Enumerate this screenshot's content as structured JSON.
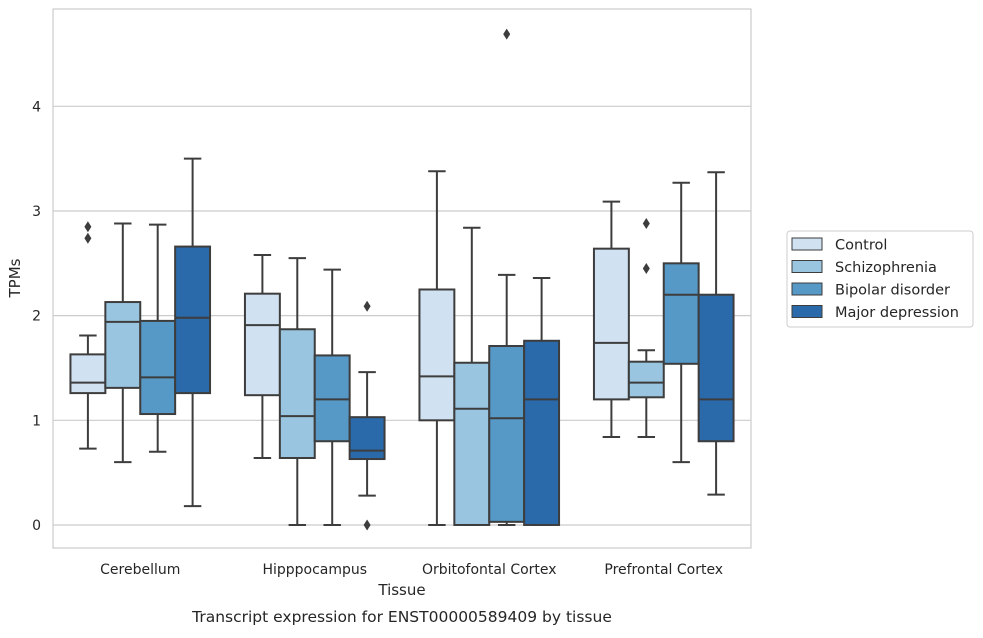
{
  "chart_data": {
    "type": "box",
    "title": "",
    "caption": "Transcript expression for ENST00000589409 by tissue",
    "xlabel": "Tissue",
    "ylabel": "TPMs",
    "ylim": [
      -0.22,
      4.93
    ],
    "yticks": [
      "0",
      "1",
      "2",
      "3",
      "4"
    ],
    "grid": "horizontal",
    "legend_position": "right",
    "categories": [
      "Cerebellum",
      "Hipppocampus",
      "Orbitofontal Cortex",
      "Prefrontal Cortex"
    ],
    "series": [
      {
        "name": "Control",
        "color": "#d0e1f2",
        "boxes": [
          {
            "whisker_low": 0.73,
            "q1": 1.26,
            "median": 1.36,
            "q3": 1.63,
            "whisker_high": 1.81,
            "outliers": [
              2.74,
              2.85
            ]
          },
          {
            "whisker_low": 0.64,
            "q1": 1.24,
            "median": 1.91,
            "q3": 2.21,
            "whisker_high": 2.58,
            "outliers": []
          },
          {
            "whisker_low": 0.0,
            "q1": 1.0,
            "median": 1.42,
            "q3": 2.25,
            "whisker_high": 3.38,
            "outliers": []
          },
          {
            "whisker_low": 0.84,
            "q1": 1.2,
            "median": 1.74,
            "q3": 2.64,
            "whisker_high": 3.09,
            "outliers": []
          }
        ]
      },
      {
        "name": "Schizophrenia",
        "color": "#9ac5e0",
        "boxes": [
          {
            "whisker_low": 0.6,
            "q1": 1.31,
            "median": 1.94,
            "q3": 2.13,
            "whisker_high": 2.88,
            "outliers": []
          },
          {
            "whisker_low": 0.0,
            "q1": 0.64,
            "median": 1.04,
            "q3": 1.87,
            "whisker_high": 2.55,
            "outliers": []
          },
          {
            "whisker_low": 0.0,
            "q1": 0.0,
            "median": 1.11,
            "q3": 1.55,
            "whisker_high": 2.84,
            "outliers": []
          },
          {
            "whisker_low": 0.84,
            "q1": 1.22,
            "median": 1.36,
            "q3": 1.56,
            "whisker_high": 1.67,
            "outliers": [
              2.45,
              2.88
            ]
          }
        ]
      },
      {
        "name": "Bipolar disorder",
        "color": "#5698c6",
        "boxes": [
          {
            "whisker_low": 0.7,
            "q1": 1.06,
            "median": 1.41,
            "q3": 1.95,
            "whisker_high": 2.87,
            "outliers": []
          },
          {
            "whisker_low": 0.0,
            "q1": 0.8,
            "median": 1.2,
            "q3": 1.62,
            "whisker_high": 2.44,
            "outliers": []
          },
          {
            "whisker_low": 0.0,
            "q1": 0.03,
            "median": 1.02,
            "q3": 1.71,
            "whisker_high": 2.39,
            "outliers": [
              4.69
            ]
          },
          {
            "whisker_low": 0.6,
            "q1": 1.54,
            "median": 2.2,
            "q3": 2.5,
            "whisker_high": 3.27,
            "outliers": []
          }
        ]
      },
      {
        "name": "Major depression",
        "color": "#2a6aaa",
        "boxes": [
          {
            "whisker_low": 0.18,
            "q1": 1.26,
            "median": 1.98,
            "q3": 2.66,
            "whisker_high": 3.5,
            "outliers": []
          },
          {
            "whisker_low": 0.28,
            "q1": 0.63,
            "median": 0.71,
            "q3": 1.03,
            "whisker_high": 1.46,
            "outliers": [
              0.0,
              2.09
            ]
          },
          {
            "whisker_low": 0.0,
            "q1": 0.0,
            "median": 1.2,
            "q3": 1.76,
            "whisker_high": 2.36,
            "outliers": []
          },
          {
            "whisker_low": 0.29,
            "q1": 0.8,
            "median": 1.2,
            "q3": 2.2,
            "whisker_high": 3.37,
            "outliers": []
          }
        ]
      }
    ]
  }
}
